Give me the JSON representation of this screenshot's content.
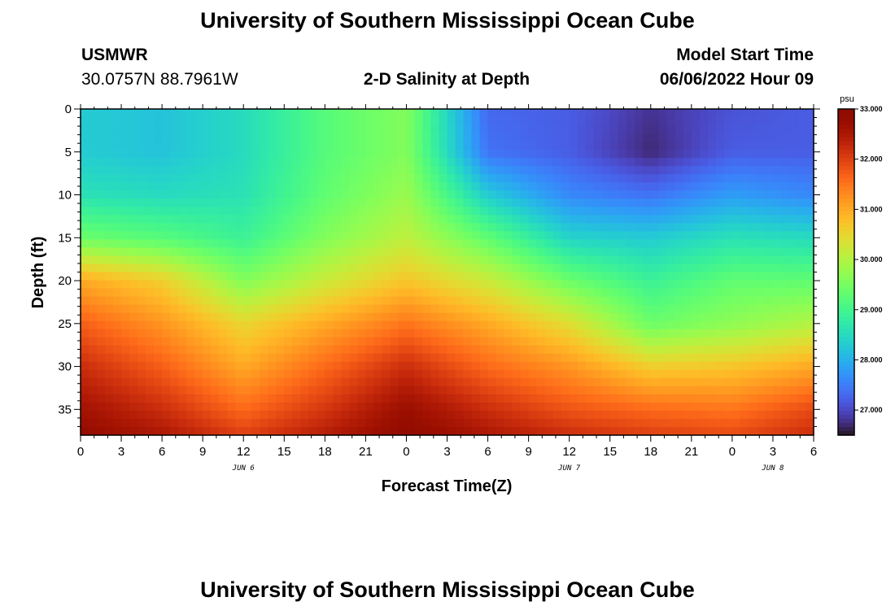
{
  "header": {
    "title": "University of Southern Mississippi Ocean Cube",
    "station": "USMWR",
    "coords": "30.0757N  88.7961W",
    "subtitle": "2-D Salinity at Depth",
    "start_label": "Model Start Time",
    "start_value": "06/06/2022 Hour 09"
  },
  "footer": {
    "title": "University of Southern Mississippi Ocean Cube"
  },
  "chart_data": {
    "type": "heatmap",
    "title": "2-D Salinity at Depth",
    "xlabel": "Forecast Time(Z)",
    "ylabel": "Depth (ft)",
    "x_tick_labels": [
      "0",
      "3",
      "6",
      "9",
      "12",
      "15",
      "18",
      "21",
      "0",
      "3",
      "6",
      "9",
      "12",
      "15",
      "18",
      "21",
      "0",
      "3",
      "6"
    ],
    "x_date_labels": [
      {
        "label": "JUN 6",
        "tick_index": 4
      },
      {
        "label": "JUN 7",
        "tick_index": 12
      },
      {
        "label": "JUN 8",
        "tick_index": 17
      }
    ],
    "y_ticks": [
      0,
      5,
      10,
      15,
      20,
      25,
      30,
      35
    ],
    "ylim": [
      0,
      38
    ],
    "y_inverted": true,
    "colorbar": {
      "unit": "psu",
      "range": [
        26.5,
        33.0
      ],
      "tick_values": [
        33.0,
        32.0,
        31.0,
        30.0,
        29.0,
        28.0,
        27.0
      ],
      "tick_labels": [
        "33.000",
        "32.000",
        "31.000",
        "30.000",
        "29.000",
        "28.000",
        "27.000"
      ],
      "colormap": "turbo"
    },
    "x_hours": [
      0,
      6,
      12,
      18,
      24,
      30,
      36,
      42,
      48,
      54
    ],
    "depths_ft": [
      0,
      5,
      10,
      15,
      20,
      25,
      30,
      35,
      38
    ],
    "salinity_psu": [
      [
        28.3,
        28.3,
        28.6,
        29.4,
        31.0,
        31.7,
        32.2,
        32.6,
        32.8
      ],
      [
        28.2,
        28.2,
        28.5,
        29.2,
        30.6,
        31.2,
        31.7,
        32.2,
        32.5
      ],
      [
        28.5,
        28.5,
        28.6,
        28.9,
        29.6,
        30.5,
        31.0,
        31.6,
        32.0
      ],
      [
        29.2,
        29.2,
        29.3,
        29.6,
        30.2,
        31.0,
        31.6,
        32.1,
        32.4
      ],
      [
        29.6,
        29.6,
        29.8,
        30.1,
        30.7,
        31.5,
        32.2,
        32.7,
        32.9
      ],
      [
        27.3,
        27.4,
        28.3,
        29.3,
        30.2,
        31.0,
        31.6,
        32.2,
        32.5
      ],
      [
        27.2,
        27.2,
        27.6,
        28.4,
        29.4,
        30.4,
        31.2,
        31.8,
        32.2
      ],
      [
        26.8,
        26.7,
        27.4,
        28.3,
        28.9,
        29.4,
        30.6,
        31.6,
        32.0
      ],
      [
        27.1,
        27.2,
        27.8,
        28.6,
        29.3,
        29.7,
        30.7,
        31.5,
        31.9
      ],
      [
        27.2,
        27.2,
        27.6,
        28.5,
        29.3,
        30.0,
        31.0,
        31.9,
        32.2
      ]
    ]
  }
}
